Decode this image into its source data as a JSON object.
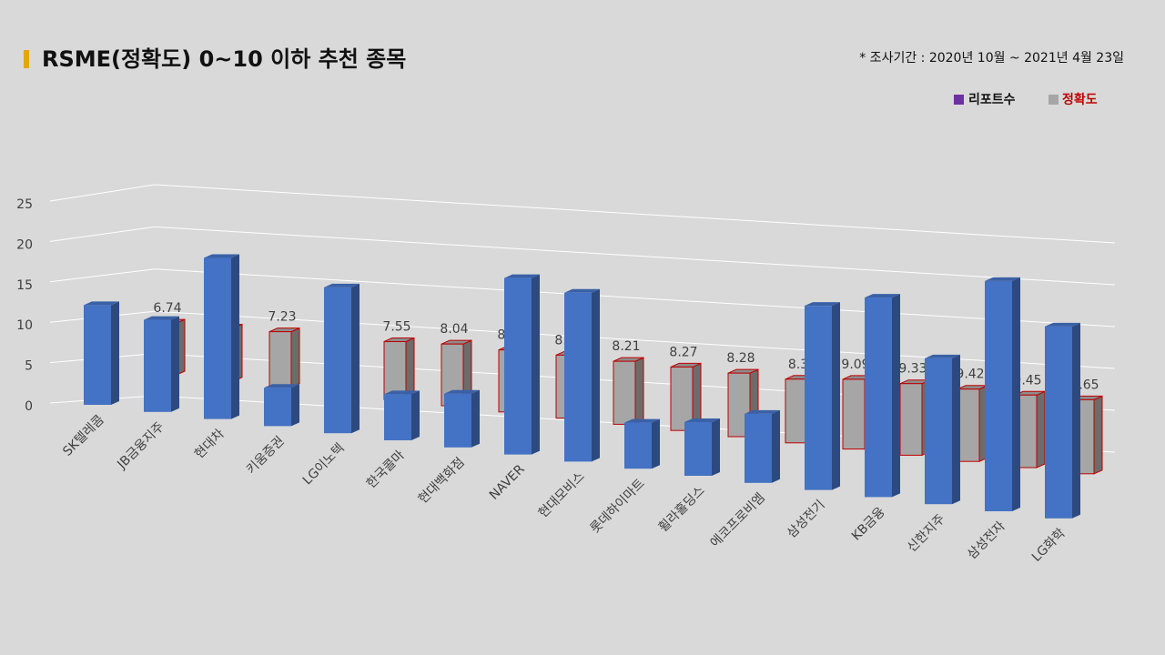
{
  "chart_data": {
    "type": "bar3d",
    "title": "RSME(정확도) 0~10 이하 추천 종목",
    "note": "* 조사기간 : 2020년 10월 ~ 2021년 4월 23일",
    "categories": [
      "SK텔레콤",
      "JB금융지주",
      "현대차",
      "키움증권",
      "LG이노텍",
      "한국콜마",
      "현대백화점",
      "NAVER",
      "현대모비스",
      "롯데하이마트",
      "휠라홀딩스",
      "에코프로비엠",
      "삼성전기",
      "KB금융",
      "신한지주",
      "삼성전자",
      "LG화학"
    ],
    "series": [
      {
        "name": "리포트수",
        "color": "#4472c4",
        "legend_color": "#7030a0",
        "values": [
          13,
          12,
          21,
          5,
          19,
          6,
          7,
          23,
          22,
          6,
          7,
          9,
          24,
          26,
          19,
          30,
          25
        ]
      },
      {
        "name": "정확도",
        "color": "#a6a6a6",
        "edge": "#c00000",
        "values": [
          6.74,
          6.91,
          7.23,
          7.39,
          7.55,
          8.04,
          8.08,
          8.21,
          8.21,
          8.27,
          8.28,
          8.3,
          9.09,
          9.33,
          9.42,
          9.45,
          9.65
        ]
      }
    ],
    "ylim": [
      0,
      25
    ],
    "yticks": [
      0,
      5,
      10,
      15,
      20,
      25
    ],
    "grid": true
  }
}
